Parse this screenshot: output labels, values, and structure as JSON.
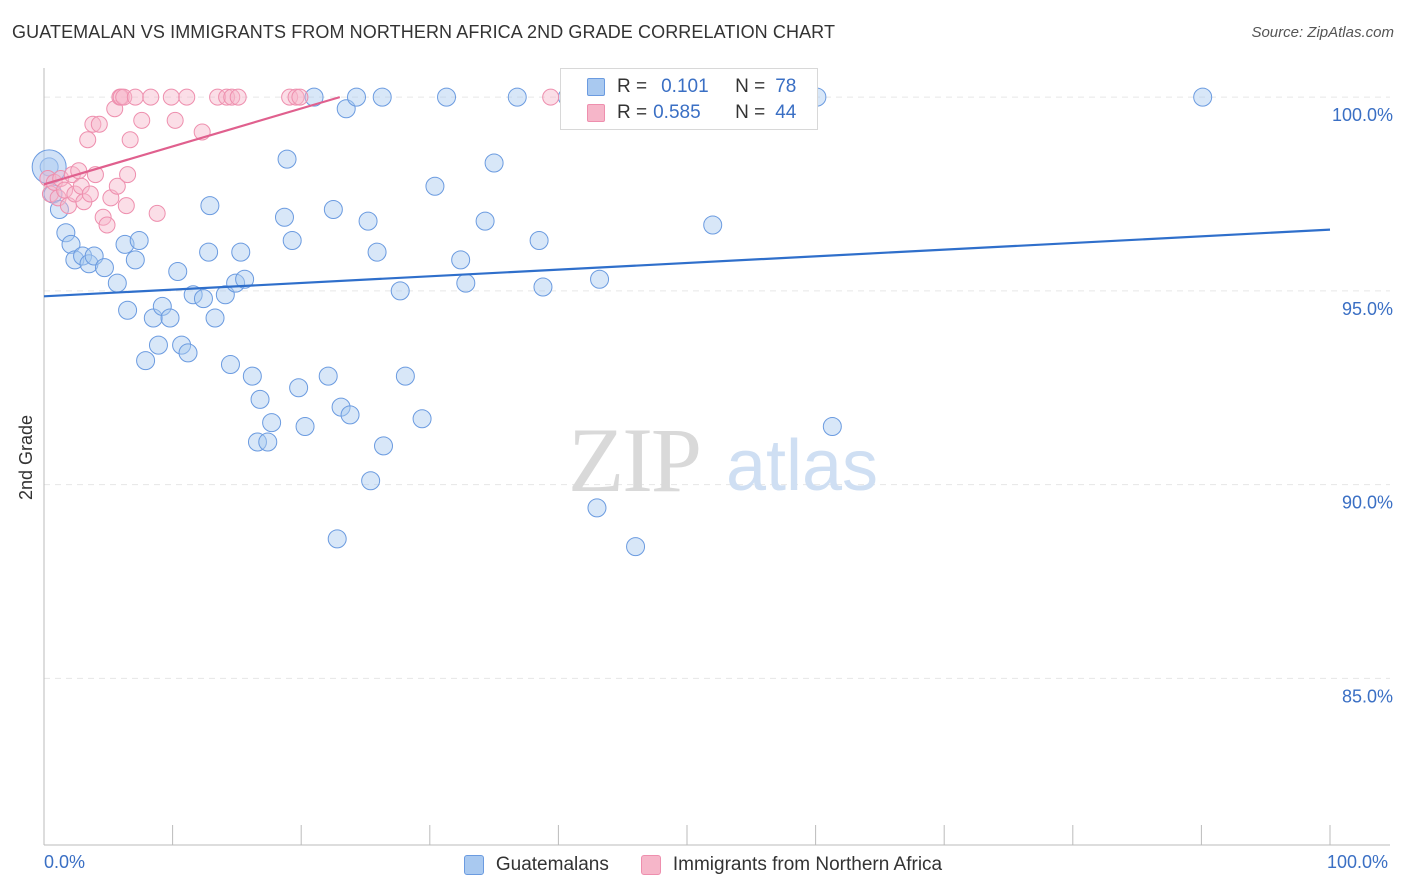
{
  "header": {
    "title": "GUATEMALAN VS IMMIGRANTS FROM NORTHERN AFRICA 2ND GRADE CORRELATION CHART",
    "source": "Source: ZipAtlas.com"
  },
  "watermark": {
    "zip": "ZIP",
    "atlas": "atlas"
  },
  "legend": {
    "rows": [
      {
        "r_label": "R =",
        "r_value": "0.101",
        "n_label": "N =",
        "n_value": "78"
      },
      {
        "r_label": "R =",
        "r_value": "0.585",
        "n_label": "N =",
        "n_value": "44"
      }
    ]
  },
  "colors": {
    "blue_fill": "#a9c9f0",
    "blue_stroke": "#6b9be0",
    "blue_line": "#2f6fcb",
    "pink_fill": "#f6b6c9",
    "pink_stroke": "#ee8fae",
    "pink_line": "#e0608e",
    "axis_text": "#3a6fc4",
    "grid": "#e6e6e6"
  },
  "chart_data": {
    "type": "scatter",
    "title": "GUATEMALAN VS IMMIGRANTS FROM NORTHERN AFRICA 2ND GRADE CORRELATION CHART",
    "xlabel": "",
    "ylabel": "2nd Grade",
    "xlim": [
      0,
      100
    ],
    "ylim": [
      80.7,
      100.7
    ],
    "x_tick_labels": [
      "0.0%",
      "100.0%"
    ],
    "y_ticks": [
      85,
      90,
      95,
      100
    ],
    "y_tick_labels": [
      "85.0%",
      "90.0%",
      "95.0%",
      "100.0%"
    ],
    "grid": true,
    "legend_placement": "bottom",
    "series": [
      {
        "name": "Guatemalans",
        "R": 0.101,
        "N": 78,
        "trend": {
          "x": [
            0,
            100
          ],
          "y": [
            94.86,
            96.58
          ]
        },
        "points": [
          [
            0.4,
            98.2
          ],
          [
            0.7,
            97.5
          ],
          [
            1.2,
            97.1
          ],
          [
            1.7,
            96.5
          ],
          [
            2.1,
            96.2
          ],
          [
            2.4,
            95.8
          ],
          [
            3.0,
            95.9
          ],
          [
            3.5,
            95.7
          ],
          [
            3.9,
            95.9
          ],
          [
            4.7,
            95.6
          ],
          [
            5.7,
            95.2
          ],
          [
            6.3,
            96.2
          ],
          [
            7.4,
            96.3
          ],
          [
            7.1,
            95.8
          ],
          [
            6.5,
            94.5
          ],
          [
            8.5,
            94.3
          ],
          [
            9.2,
            94.6
          ],
          [
            9.8,
            94.3
          ],
          [
            7.9,
            93.2
          ],
          [
            8.9,
            93.6
          ],
          [
            10.4,
            95.5
          ],
          [
            10.7,
            93.6
          ],
          [
            11.2,
            93.4
          ],
          [
            11.6,
            94.9
          ],
          [
            12.4,
            94.8
          ],
          [
            12.8,
            96.0
          ],
          [
            12.9,
            97.2
          ],
          [
            13.3,
            94.3
          ],
          [
            14.1,
            94.9
          ],
          [
            14.5,
            93.1
          ],
          [
            14.9,
            95.2
          ],
          [
            15.3,
            96.0
          ],
          [
            15.6,
            95.3
          ],
          [
            16.2,
            92.8
          ],
          [
            16.6,
            91.1
          ],
          [
            16.8,
            92.2
          ],
          [
            17.4,
            91.1
          ],
          [
            17.7,
            91.6
          ],
          [
            18.7,
            96.9
          ],
          [
            18.9,
            98.4
          ],
          [
            19.3,
            96.3
          ],
          [
            19.8,
            92.5
          ],
          [
            20.3,
            91.5
          ],
          [
            21.0,
            100.0
          ],
          [
            22.1,
            92.8
          ],
          [
            22.5,
            97.1
          ],
          [
            22.8,
            88.6
          ],
          [
            23.1,
            92.0
          ],
          [
            23.5,
            99.7
          ],
          [
            23.8,
            91.8
          ],
          [
            24.3,
            100.0
          ],
          [
            25.2,
            96.8
          ],
          [
            25.4,
            90.1
          ],
          [
            25.9,
            96.0
          ],
          [
            26.3,
            100.0
          ],
          [
            26.4,
            91.0
          ],
          [
            27.7,
            95.0
          ],
          [
            28.1,
            92.8
          ],
          [
            29.4,
            91.7
          ],
          [
            30.4,
            97.7
          ],
          [
            31.3,
            100.0
          ],
          [
            32.4,
            95.8
          ],
          [
            32.8,
            95.2
          ],
          [
            34.3,
            96.8
          ],
          [
            35.0,
            98.3
          ],
          [
            36.8,
            100.0
          ],
          [
            38.5,
            96.3
          ],
          [
            38.8,
            95.1
          ],
          [
            40.7,
            100.0
          ],
          [
            43.0,
            89.4
          ],
          [
            43.2,
            95.3
          ],
          [
            46.0,
            88.4
          ],
          [
            52.0,
            96.7
          ],
          [
            57.3,
            100.0
          ],
          [
            58.8,
            100.0
          ],
          [
            60.1,
            100.0
          ],
          [
            61.3,
            91.5
          ],
          [
            90.1,
            100.0
          ]
        ]
      },
      {
        "name": "Immigrants from Northern Africa",
        "R": 0.585,
        "N": 44,
        "trend": {
          "x": [
            0,
            23.0
          ],
          "y": [
            97.75,
            100.0
          ]
        },
        "points": [
          [
            0.3,
            97.9
          ],
          [
            0.5,
            97.5
          ],
          [
            0.8,
            97.8
          ],
          [
            1.1,
            97.4
          ],
          [
            1.3,
            97.9
          ],
          [
            1.6,
            97.6
          ],
          [
            1.9,
            97.2
          ],
          [
            2.2,
            98.0
          ],
          [
            2.4,
            97.5
          ],
          [
            2.7,
            98.1
          ],
          [
            2.9,
            97.7
          ],
          [
            3.1,
            97.3
          ],
          [
            3.4,
            98.9
          ],
          [
            3.6,
            97.5
          ],
          [
            3.8,
            99.3
          ],
          [
            4.0,
            98.0
          ],
          [
            4.3,
            99.3
          ],
          [
            4.6,
            96.9
          ],
          [
            4.9,
            96.7
          ],
          [
            5.2,
            97.4
          ],
          [
            5.5,
            99.7
          ],
          [
            5.7,
            97.7
          ],
          [
            5.9,
            100.0
          ],
          [
            6.0,
            100.0
          ],
          [
            6.2,
            100.0
          ],
          [
            6.4,
            97.2
          ],
          [
            6.5,
            98.0
          ],
          [
            6.7,
            98.9
          ],
          [
            7.1,
            100.0
          ],
          [
            7.6,
            99.4
          ],
          [
            8.3,
            100.0
          ],
          [
            8.8,
            97.0
          ],
          [
            9.9,
            100.0
          ],
          [
            10.2,
            99.4
          ],
          [
            11.1,
            100.0
          ],
          [
            12.3,
            99.1
          ],
          [
            13.5,
            100.0
          ],
          [
            14.2,
            100.0
          ],
          [
            14.6,
            100.0
          ],
          [
            15.1,
            100.0
          ],
          [
            19.1,
            100.0
          ],
          [
            19.6,
            100.0
          ],
          [
            19.9,
            100.0
          ],
          [
            39.4,
            100.0
          ]
        ]
      }
    ]
  }
}
